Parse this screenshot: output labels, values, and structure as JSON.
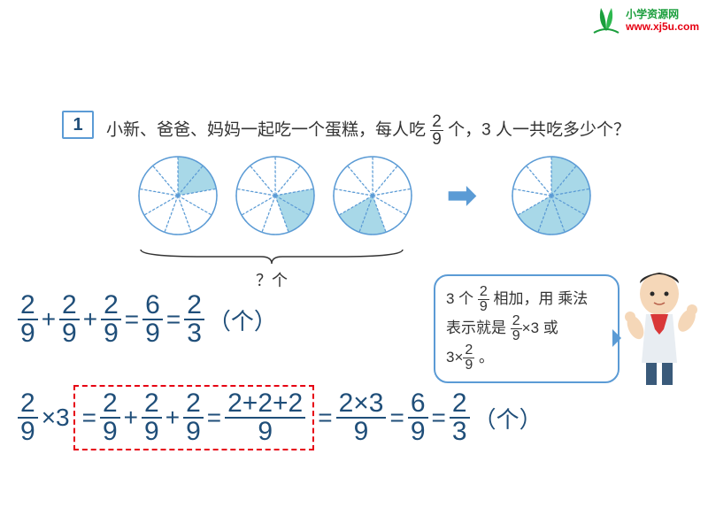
{
  "logo": {
    "name": "小学资源网",
    "url": "www.xj5u.com",
    "leaf_color": "#1a9e3c",
    "url_color": "#e60012"
  },
  "problem": {
    "number": "1",
    "text_pre": "小新、爸爸、妈妈一起吃一个蛋糕，每人吃",
    "frac_num": "2",
    "frac_den": "9",
    "text_post": " 个，3 人一共吃多少个？"
  },
  "pies": {
    "slices": 9,
    "fill_color": "#a8d8e8",
    "stroke_color": "#5b9bd5",
    "arrow_color": "#5b9bd5",
    "brace_label": "？个",
    "pie_configs": [
      {
        "filled": [
          1,
          2
        ]
      },
      {
        "filled": [
          3,
          4
        ]
      },
      {
        "filled": [
          5,
          6
        ]
      },
      {
        "filled": [
          1,
          2,
          3,
          4,
          5,
          6
        ]
      }
    ]
  },
  "equation1": {
    "parts": [
      "2/9",
      "+",
      "2/9",
      "+",
      "2/9",
      "=",
      "6/9",
      "=",
      "2/3"
    ],
    "unit": "（个）"
  },
  "equation2": {
    "lhs_frac": "2/9",
    "mul": "×3",
    "dashed": [
      "=",
      "2/9",
      "+",
      "2/9",
      "+",
      "2/9",
      "=",
      "2+2+2",
      "/",
      "9"
    ],
    "tail": [
      "=",
      "2×3",
      "/",
      "9",
      "=",
      "6/9",
      "=",
      "2/3"
    ],
    "unit": "（个）"
  },
  "speech": {
    "line1_pre": "3 个 ",
    "f1n": "2",
    "f1d": "9",
    "line1_post": " 相加，用 乘法",
    "line2_pre": "表示就是 ",
    "f2n": "2",
    "f2d": "9",
    "line2_post": "×3 或",
    "line3_pre": "3×",
    "f3n": "2",
    "f3d": "9",
    "line3_post": " 。"
  },
  "colors": {
    "text": "#333333",
    "frame": "#5b9bd5",
    "math": "#1f4e79",
    "dashed": "#e60012"
  }
}
